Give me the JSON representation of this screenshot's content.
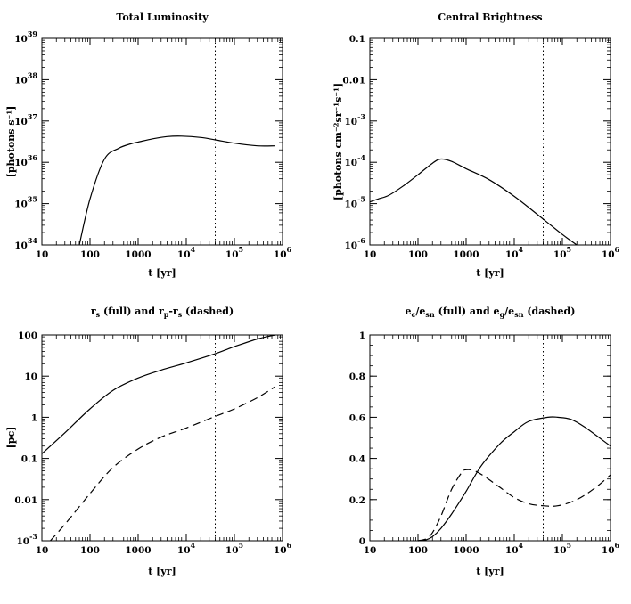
{
  "chart_data": [
    {
      "type": "line",
      "title": "Total Luminosity",
      "xlabel": "t [yr]",
      "ylabel": "[photons s⁻¹]",
      "xscale": "log",
      "yscale": "log",
      "xlim": [
        10,
        1000000
      ],
      "ylim": [
        1e+34,
        1e+39
      ],
      "x_ticks": [
        {
          "value": 10,
          "base": "10",
          "exp": ""
        },
        {
          "value": 100,
          "base": "100",
          "exp": ""
        },
        {
          "value": 1000,
          "base": "1000",
          "exp": ""
        },
        {
          "value": 10000,
          "base": "10",
          "exp": "4"
        },
        {
          "value": 100000,
          "base": "10",
          "exp": "5"
        },
        {
          "value": 1000000,
          "base": "10",
          "exp": "6"
        }
      ],
      "y_ticks": [
        {
          "value": 1e+34,
          "base": "10",
          "exp": "34"
        },
        {
          "value": 1e+35,
          "base": "10",
          "exp": "35"
        },
        {
          "value": 1e+36,
          "base": "10",
          "exp": "36"
        },
        {
          "value": 1e+37,
          "base": "10",
          "exp": "37"
        },
        {
          "value": 1e+38,
          "base": "10",
          "exp": "38"
        },
        {
          "value": 1e+39,
          "base": "10",
          "exp": "39"
        }
      ],
      "vline_x": 40000,
      "series": [
        {
          "name": "full",
          "style": "solid",
          "x": [
            60,
            100,
            200,
            400,
            700,
            1000,
            2000,
            4000,
            8000,
            20000,
            40000,
            100000,
            300000,
            700000
          ],
          "y": [
            1e+34,
            1.3e+35,
            1.2e+36,
            2.2e+36,
            2.8e+36,
            3.1e+36,
            3.7e+36,
            4.2e+36,
            4.3e+36,
            4e+36,
            3.5e+36,
            2.9e+36,
            2.5e+36,
            2.5e+36
          ]
        }
      ]
    },
    {
      "type": "line",
      "title": "Central Brightness",
      "xlabel": "t [yr]",
      "ylabel": "[photons cm⁻²sr⁻¹s⁻¹]",
      "xscale": "log",
      "yscale": "log",
      "xlim": [
        10,
        1000000
      ],
      "ylim": [
        1e-06,
        0.1
      ],
      "x_ticks": [
        {
          "value": 10,
          "base": "10",
          "exp": ""
        },
        {
          "value": 100,
          "base": "100",
          "exp": ""
        },
        {
          "value": 1000,
          "base": "1000",
          "exp": ""
        },
        {
          "value": 10000,
          "base": "10",
          "exp": "4"
        },
        {
          "value": 100000,
          "base": "10",
          "exp": "5"
        },
        {
          "value": 1000000,
          "base": "10",
          "exp": "6"
        }
      ],
      "y_ticks": [
        {
          "value": 1e-06,
          "base": "10",
          "exp": "-6"
        },
        {
          "value": 1e-05,
          "base": "10",
          "exp": "-5"
        },
        {
          "value": 0.0001,
          "base": "10",
          "exp": "-4"
        },
        {
          "value": 0.001,
          "base": "10",
          "exp": "-3"
        },
        {
          "value": 0.01,
          "base": "0.01",
          "exp": ""
        },
        {
          "value": 0.1,
          "base": "0.1",
          "exp": ""
        }
      ],
      "vline_x": 40000,
      "series": [
        {
          "name": "full",
          "style": "solid",
          "x": [
            10,
            15,
            25,
            50,
            100,
            200,
            300,
            500,
            1000,
            3000,
            10000,
            30000,
            100000,
            200000
          ],
          "y": [
            1.1e-05,
            1.3e-05,
            1.6e-05,
            2.7e-05,
            5e-05,
            9.5e-05,
            0.00012,
            0.000105,
            7e-05,
            3.8e-05,
            1.5e-05,
            5.5e-06,
            1.8e-06,
            1e-06
          ]
        }
      ]
    },
    {
      "type": "line",
      "title_parts": {
        "r1": "r",
        "s1": "s",
        "t1": " (full) and ",
        "r2": "r",
        "s2": "p",
        "t2": "-r",
        "s3": "s",
        "t3": " (dashed)"
      },
      "xlabel": "t [yr]",
      "ylabel": "[pc]",
      "xscale": "log",
      "yscale": "log",
      "xlim": [
        10,
        1000000
      ],
      "ylim": [
        0.001,
        100
      ],
      "x_ticks": [
        {
          "value": 10,
          "base": "10",
          "exp": ""
        },
        {
          "value": 100,
          "base": "100",
          "exp": ""
        },
        {
          "value": 1000,
          "base": "1000",
          "exp": ""
        },
        {
          "value": 10000,
          "base": "10",
          "exp": "4"
        },
        {
          "value": 100000,
          "base": "10",
          "exp": "5"
        },
        {
          "value": 1000000,
          "base": "10",
          "exp": "6"
        }
      ],
      "y_ticks": [
        {
          "value": 0.001,
          "base": "10",
          "exp": "-3"
        },
        {
          "value": 0.01,
          "base": "0.01",
          "exp": ""
        },
        {
          "value": 0.1,
          "base": "0.1",
          "exp": ""
        },
        {
          "value": 1,
          "base": "1",
          "exp": ""
        },
        {
          "value": 10,
          "base": "10",
          "exp": ""
        },
        {
          "value": 100,
          "base": "100",
          "exp": ""
        }
      ],
      "vline_x": 40000,
      "series": [
        {
          "name": "full",
          "style": "solid",
          "x": [
            10,
            30,
            100,
            300,
            1000,
            3000,
            10000,
            40000,
            100000,
            300000,
            700000
          ],
          "y": [
            0.13,
            0.42,
            1.6,
            4.5,
            9,
            14,
            21,
            35,
            52,
            80,
            100
          ]
        },
        {
          "name": "dashed",
          "style": "dashed",
          "x": [
            15,
            30,
            100,
            300,
            1000,
            3000,
            10000,
            40000,
            100000,
            300000,
            700000
          ],
          "y": [
            0.001,
            0.0025,
            0.014,
            0.06,
            0.17,
            0.33,
            0.55,
            1.05,
            1.6,
            3,
            5.5
          ]
        }
      ]
    },
    {
      "type": "line",
      "title_parts": {
        "r1": "e",
        "s1": "c",
        "t1": "/e",
        "s2": "sn",
        "t2": " (full) and e",
        "s3": "g",
        "t3": "/e",
        "s4": "sn",
        "t4": " (dashed)"
      },
      "xlabel": "t [yr]",
      "ylabel": "",
      "xscale": "log",
      "yscale": "linear",
      "xlim": [
        10,
        1000000
      ],
      "ylim": [
        0,
        1
      ],
      "x_ticks": [
        {
          "value": 10,
          "base": "10",
          "exp": ""
        },
        {
          "value": 100,
          "base": "100",
          "exp": ""
        },
        {
          "value": 1000,
          "base": "1000",
          "exp": ""
        },
        {
          "value": 10000,
          "base": "10",
          "exp": "4"
        },
        {
          "value": 100000,
          "base": "10",
          "exp": "5"
        },
        {
          "value": 1000000,
          "base": "10",
          "exp": "6"
        }
      ],
      "y_ticks": [
        {
          "value": 0,
          "base": "0",
          "exp": ""
        },
        {
          "value": 0.2,
          "base": "0.2",
          "exp": ""
        },
        {
          "value": 0.4,
          "base": "0.4",
          "exp": ""
        },
        {
          "value": 0.6,
          "base": "0.6",
          "exp": ""
        },
        {
          "value": 0.8,
          "base": "0.8",
          "exp": ""
        },
        {
          "value": 1,
          "base": "1",
          "exp": ""
        }
      ],
      "vline_x": 40000,
      "series": [
        {
          "name": "full",
          "style": "solid",
          "x": [
            100,
            150,
            200,
            300,
            500,
            1000,
            2000,
            5000,
            10000,
            20000,
            50000,
            80000,
            150000,
            300000,
            1000000
          ],
          "y": [
            0,
            0.005,
            0.02,
            0.06,
            0.13,
            0.24,
            0.36,
            0.47,
            0.53,
            0.58,
            0.6,
            0.6,
            0.59,
            0.55,
            0.46
          ]
        },
        {
          "name": "dashed",
          "style": "dashed",
          "x": [
            100,
            150,
            200,
            300,
            500,
            800,
            1000,
            1500,
            2500,
            5000,
            10000,
            20000,
            40000,
            80000,
            200000,
            500000,
            1000000
          ],
          "y": [
            0,
            0.01,
            0.04,
            0.12,
            0.25,
            0.33,
            0.345,
            0.34,
            0.31,
            0.26,
            0.21,
            0.18,
            0.17,
            0.17,
            0.2,
            0.26,
            0.32
          ]
        }
      ]
    }
  ]
}
